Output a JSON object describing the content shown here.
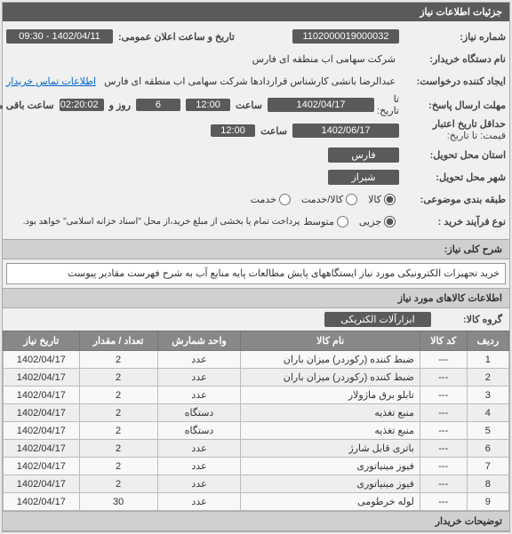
{
  "header": {
    "title": "جزئیات اطلاعات نیاز"
  },
  "form": {
    "need_no_label": "شماره نیاز:",
    "need_no": "1102000019000032",
    "pub_datetime_label": "تاریخ و ساعت اعلان عمومی:",
    "pub_datetime": "1402/04/11 - 09:30",
    "buyer_label": "نام دستگاه خریدار:",
    "buyer": "شرکت سهامی اب منطقه ای فارس",
    "creator_label": "ایجاد کننده درخواست:",
    "creator": "عبدالرضا بانشی کارشناس قراردادها شرکت سهامی اب منطقه ای فارس",
    "contact_link": "اطلاعات تماس خریدار",
    "deadline_label": "مهلت ارسال پاسخ:",
    "deadline_tag": "تا تاریخ:",
    "deadline_date": "1402/04/17",
    "time_label": "ساعت",
    "deadline_time": "12:00",
    "day_label": "روز و",
    "days": "6",
    "remain_label": "ساعت باقی مانده",
    "remain_time": "02:20:02",
    "validity_label": "حداقل تاریخ اعتبار",
    "validity_tag": "قیمت: تا تاریخ:",
    "validity_date": "1402/06/17",
    "validity_time": "12:00",
    "province_label": "استان محل تحویل:",
    "province": "فارس",
    "city_label": "شهر محل تحویل:",
    "city": "شیراز",
    "category_label": "طبقه بندی موضوعی:",
    "cat_kala": "کالا",
    "cat_khadamat": "کالا/خدمت",
    "cat_khadamat2": "خدمت",
    "process_label": "نوع فرآیند خرید :",
    "proc_full": "جزیی",
    "proc_part": "متوسط",
    "pay_note": "پرداخت تمام یا بخشی از مبلغ خرید،از محل \"اسناد خزانه اسلامی\" خواهد بود."
  },
  "desc": {
    "title": "شرح کلی نیاز:",
    "text": "خرید تجهیزات الکترونیکی مورد نیاز ایستگاههای پایش مطالعات پایه منابع آب به شرح فهرست مقادیر پیوست"
  },
  "items_header": "اطلاعات کالاهای مورد نیاز",
  "group": {
    "label": "گروه کالا:",
    "value": "ابزارآلات الکتریکی"
  },
  "columns": {
    "row": "ردیف",
    "code": "کد کالا",
    "name": "نام کالا",
    "unit": "واحد شمارش",
    "qty": "تعداد / مقدار",
    "date": "تاریخ نیاز"
  },
  "rows": [
    {
      "n": "1",
      "code": "---",
      "name": "ضبط کننده (رکوردر) میزان باران",
      "unit": "عدد",
      "qty": "2",
      "date": "1402/04/17"
    },
    {
      "n": "2",
      "code": "---",
      "name": "ضبط کننده (رکوردر) میزان باران",
      "unit": "عدد",
      "qty": "2",
      "date": "1402/04/17"
    },
    {
      "n": "3",
      "code": "---",
      "name": "تابلو برق ماژولار",
      "unit": "عدد",
      "qty": "2",
      "date": "1402/04/17"
    },
    {
      "n": "4",
      "code": "---",
      "name": "منبع تغذیه",
      "unit": "دستگاه",
      "qty": "2",
      "date": "1402/04/17"
    },
    {
      "n": "5",
      "code": "---",
      "name": "منبع تغذیه",
      "unit": "دستگاه",
      "qty": "2",
      "date": "1402/04/17"
    },
    {
      "n": "6",
      "code": "---",
      "name": "باتری قابل شارژ",
      "unit": "عدد",
      "qty": "2",
      "date": "1402/04/17"
    },
    {
      "n": "7",
      "code": "---",
      "name": "فیوز مینیاتوری",
      "unit": "عدد",
      "qty": "2",
      "date": "1402/04/17"
    },
    {
      "n": "8",
      "code": "---",
      "name": "فیوز مینیاتوری",
      "unit": "عدد",
      "qty": "2",
      "date": "1402/04/17"
    },
    {
      "n": "9",
      "code": "---",
      "name": "لوله خرطومی",
      "unit": "عدد",
      "qty": "30",
      "date": "1402/04/17"
    }
  ],
  "footer_title": "توضیحات خریدار"
}
